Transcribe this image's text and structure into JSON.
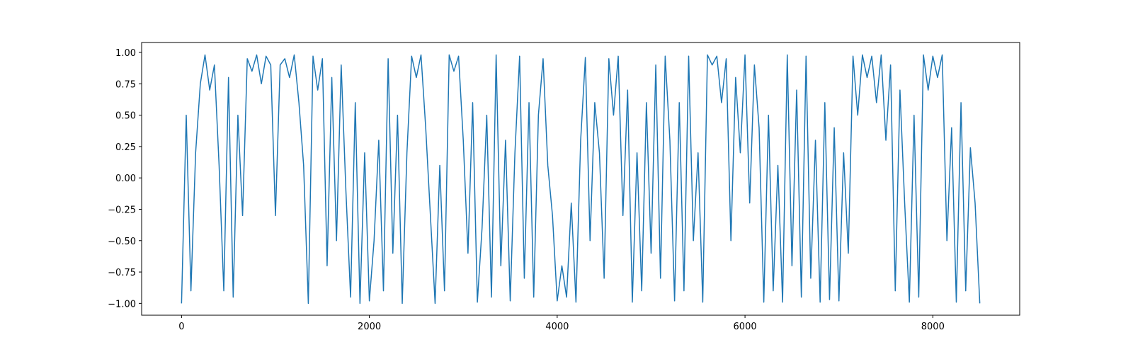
{
  "chart_data": {
    "type": "line",
    "x": [
      0,
      50,
      100,
      150,
      200,
      250,
      300,
      350,
      400,
      450,
      500,
      550,
      600,
      650,
      700,
      750,
      800,
      850,
      900,
      950,
      1000,
      1050,
      1100,
      1150,
      1200,
      1250,
      1300,
      1350,
      1400,
      1450,
      1500,
      1550,
      1600,
      1650,
      1700,
      1750,
      1800,
      1850,
      1900,
      1950,
      2000,
      2050,
      2100,
      2150,
      2200,
      2250,
      2300,
      2350,
      2400,
      2450,
      2500,
      2550,
      2600,
      2650,
      2700,
      2750,
      2800,
      2850,
      2900,
      2950,
      3000,
      3050,
      3100,
      3150,
      3200,
      3250,
      3300,
      3350,
      3400,
      3450,
      3500,
      3550,
      3600,
      3650,
      3700,
      3750,
      3800,
      3850,
      3900,
      3950,
      4000,
      4050,
      4100,
      4150,
      4200,
      4250,
      4300,
      4350,
      4400,
      4450,
      4500,
      4550,
      4600,
      4650,
      4700,
      4750,
      4800,
      4850,
      4900,
      4950,
      5000,
      5050,
      5100,
      5150,
      5200,
      5250,
      5300,
      5350,
      5400,
      5450,
      5500,
      5550,
      5600,
      5650,
      5700,
      5750,
      5800,
      5850,
      5900,
      5950,
      6000,
      6050,
      6100,
      6150,
      6200,
      6250,
      6300,
      6350,
      6400,
      6450,
      6500,
      6550,
      6600,
      6650,
      6700,
      6750,
      6800,
      6850,
      6900,
      6950,
      7000,
      7050,
      7100,
      7150,
      7200,
      7250,
      7300,
      7350,
      7400,
      7450,
      7500,
      7550,
      7600,
      7650,
      7700,
      7750,
      7800,
      7850,
      7900,
      7950,
      8000,
      8050,
      8100,
      8150,
      8200,
      8250,
      8300,
      8350,
      8400,
      8450,
      8500
    ],
    "series": [
      {
        "color": "#1f77b4",
        "values": [
          -1.0,
          0.5,
          -0.9,
          0.2,
          0.75,
          0.98,
          0.7,
          0.9,
          0.1,
          -0.9,
          0.8,
          -0.95,
          0.5,
          -0.3,
          0.95,
          0.85,
          0.98,
          0.75,
          0.97,
          0.9,
          -0.3,
          0.9,
          0.95,
          0.8,
          0.98,
          0.6,
          0.1,
          -1.0,
          0.97,
          0.7,
          0.95,
          -0.7,
          0.8,
          -0.5,
          0.9,
          -0.1,
          -0.95,
          0.6,
          -1.0,
          0.2,
          -0.98,
          -0.5,
          0.3,
          -0.9,
          0.95,
          -0.6,
          0.5,
          -1.0,
          0.2,
          0.97,
          0.8,
          0.98,
          0.4,
          -0.3,
          -1.0,
          0.1,
          -0.9,
          0.98,
          0.85,
          0.97,
          0.3,
          -0.6,
          0.6,
          -0.99,
          -0.4,
          0.5,
          -0.95,
          0.98,
          -0.7,
          0.3,
          -0.98,
          0.2,
          0.97,
          -0.8,
          0.6,
          -0.95,
          0.5,
          0.95,
          0.1,
          -0.3,
          -0.98,
          -0.7,
          -0.95,
          -0.2,
          -0.99,
          0.3,
          0.96,
          -0.5,
          0.6,
          0.2,
          -0.8,
          0.95,
          0.5,
          0.97,
          -0.3,
          0.7,
          -0.99,
          0.2,
          -0.9,
          0.6,
          -0.6,
          0.9,
          -0.8,
          0.97,
          0.3,
          -0.98,
          0.6,
          -0.9,
          0.97,
          -0.5,
          0.2,
          -0.99,
          0.98,
          0.9,
          0.97,
          0.6,
          0.95,
          -0.5,
          0.8,
          0.2,
          0.98,
          -0.2,
          0.9,
          0.4,
          -0.99,
          0.5,
          -0.9,
          0.1,
          -0.99,
          0.98,
          -0.7,
          0.7,
          -0.95,
          0.97,
          -0.8,
          0.3,
          -0.99,
          0.6,
          -0.97,
          0.4,
          -0.98,
          0.2,
          -0.6,
          0.97,
          0.5,
          0.98,
          0.8,
          0.97,
          0.6,
          0.98,
          0.3,
          0.9,
          -0.9,
          0.7,
          -0.2,
          -0.99,
          0.5,
          -0.95,
          0.98,
          0.7,
          0.97,
          0.8,
          0.98,
          -0.5,
          0.4,
          -0.99,
          0.6,
          -0.9,
          0.24,
          -0.2,
          -1.0
        ]
      }
    ],
    "xlim": [
      -425,
      8925
    ],
    "ylim": [
      -1.094,
      1.079
    ],
    "xticks": [
      0,
      2000,
      4000,
      6000,
      8000
    ],
    "yticks": [
      {
        "value": -1,
        "label": "−1.00"
      },
      {
        "value": -0.75,
        "label": "−0.75"
      },
      {
        "value": -0.5,
        "label": "−0.50"
      },
      {
        "value": -0.25,
        "label": "−0.25"
      },
      {
        "value": 0,
        "label": "0.00"
      },
      {
        "value": 0.25,
        "label": "0.25"
      },
      {
        "value": 0.5,
        "label": "0.50"
      },
      {
        "value": 0.75,
        "label": "0.75"
      },
      {
        "value": 1,
        "label": "1.00"
      }
    ],
    "grid": false
  }
}
